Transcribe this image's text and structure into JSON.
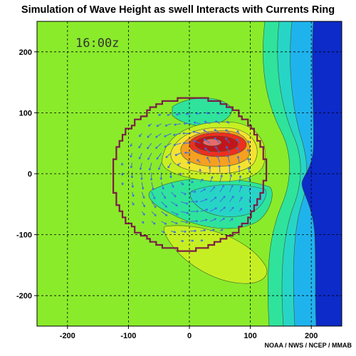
{
  "title": "Simulation of Wave Height as swell Interacts with Currents Ring",
  "timestamp": "16:00z",
  "credit": "NOAA / NWS / NCEP / MMAB",
  "chart_data": {
    "type": "heatmap",
    "title": "Simulation of Wave Height as swell Interacts with Currents Ring",
    "xlabel": "",
    "ylabel": "",
    "xlim": [
      -250,
      250
    ],
    "ylim": [
      -250,
      250
    ],
    "x_ticks": [
      -200,
      -100,
      0,
      100,
      200
    ],
    "y_ticks": [
      -200,
      -100,
      0,
      100,
      200
    ],
    "x_tick_labels": [
      "-200",
      "-100",
      "0",
      "100",
      "200"
    ],
    "y_tick_labels": [
      "-200",
      "-100",
      "0",
      "100",
      "200"
    ],
    "grid": true,
    "ring": {
      "center": [
        0,
        0
      ],
      "radius": 125
    },
    "max_center": [
      40,
      50
    ],
    "min_center": [
      40,
      -30
    ],
    "colors": {
      "background": "#8aeb2b",
      "high_1": "#c6ef23",
      "high_2": "#f4e233",
      "high_3": "#f5a020",
      "high_4": "#ec2f1f",
      "high_5": "#c2151b",
      "peak": "#e86a6a",
      "low_1": "#2fe39c",
      "low_2": "#27d5c6",
      "low_3": "#1fb3ee",
      "deep": "#0c2bc8",
      "ring": "#7a1e45",
      "vectors": "#3b6fe0",
      "grid": "#000000"
    }
  }
}
